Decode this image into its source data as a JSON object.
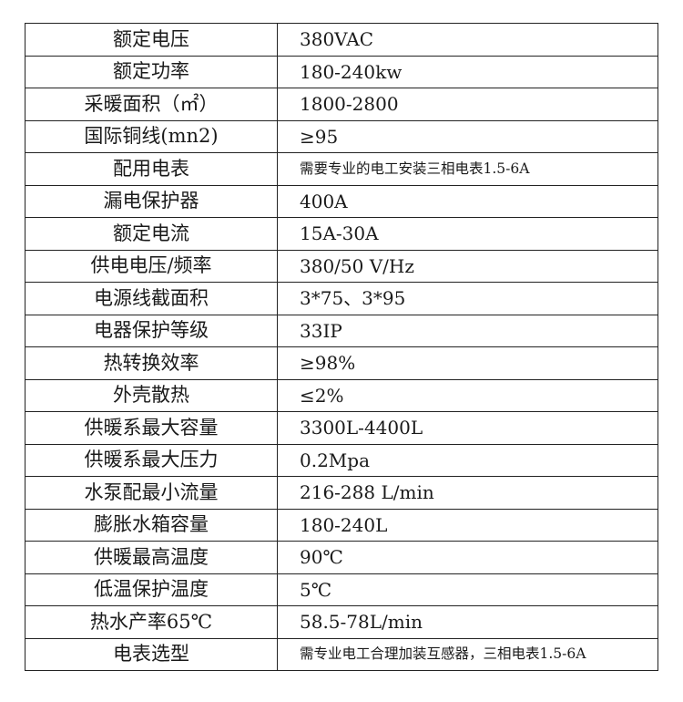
{
  "rows": [
    {
      "label": "额定电压",
      "value": "380VAC"
    },
    {
      "label": "额定功率",
      "value": "180-240kw"
    },
    {
      "label": "采暖面积（㎡）",
      "value": "1800-2800"
    },
    {
      "label": "国际铜线(mn2)",
      "value": "≥95"
    },
    {
      "label": "配用电表",
      "value": "需要专业的电工安装三相电表1.5-6A"
    },
    {
      "label": "漏电保护器",
      "value": "400A"
    },
    {
      "label": "额定电流",
      "value": "15A-30A"
    },
    {
      "label": "供电电压/频率",
      "value": "380/50 V/Hz"
    },
    {
      "label": "电源线截面积",
      "value": "3*75、3*95"
    },
    {
      "label": "电器保护等级",
      "value": "33IP"
    },
    {
      "label": "热转换效率",
      "value": "≥98%"
    },
    {
      "label": "外壳散热",
      "value": "≤2%"
    },
    {
      "label": "供暖系最大容量",
      "value": "3300L-4400L"
    },
    {
      "label": "供暖系最大压力",
      "value": "0.2Mpa"
    },
    {
      "label": "水泵配最小流量",
      "value": "216-288 L/min"
    },
    {
      "label": "膨胀水箱容量",
      "value": "180-240L"
    },
    {
      "label": "供暖最高温度",
      "value": "90℃"
    },
    {
      "label": "低温保护温度",
      "value": "5℃"
    },
    {
      "label": "热水产率65℃",
      "value": "58.5-78L/min"
    },
    {
      "label": "电表选型",
      "value": "需专业电工合理加装互感器，三相电表1.5-6A"
    }
  ]
}
